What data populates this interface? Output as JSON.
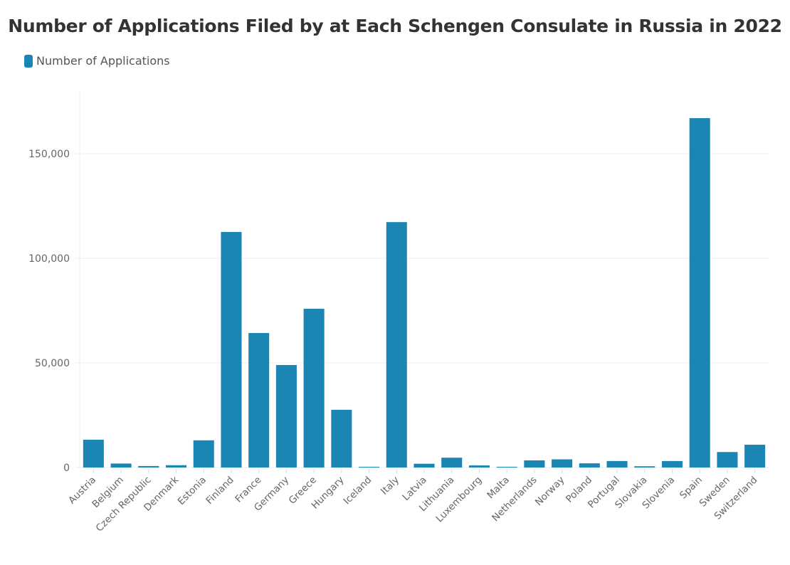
{
  "chart_data": {
    "type": "bar",
    "title": "Number of Applications Filed by at Each Schengen Consulate in Russia in 2022",
    "xlabel": "",
    "ylabel": "",
    "legend": {
      "position": "top-left",
      "entries": [
        "Number of Applications"
      ]
    },
    "ylim": [
      0,
      180000
    ],
    "yticks": [
      0,
      50000,
      100000,
      150000
    ],
    "ytick_labels": [
      "0",
      "50,000",
      "100,000",
      "150,000"
    ],
    "grid": true,
    "categories": [
      "Austria",
      "Belgium",
      "Czech Republic",
      "Denmark",
      "Estonia",
      "Finland",
      "France",
      "Germany",
      "Greece",
      "Hungary",
      "Iceland",
      "Italy",
      "Latvia",
      "Lithuania",
      "Luxembourg",
      "Malta",
      "Netherlands",
      "Norway",
      "Poland",
      "Portugal",
      "Slovakia",
      "Slovenia",
      "Spain",
      "Sweden",
      "Switzerland"
    ],
    "series": [
      {
        "name": "Number of Applications",
        "color": "#1b85b4",
        "values": [
          13300,
          1900,
          700,
          1100,
          13000,
          112600,
          64300,
          49000,
          75900,
          27600,
          300,
          117300,
          1800,
          4700,
          1000,
          300,
          3400,
          3900,
          2000,
          3100,
          600,
          3100,
          167000,
          7400,
          10900
        ]
      }
    ]
  },
  "colors": {
    "bar": "#1b85b4",
    "grid": "#eeeeee",
    "title": "#333333",
    "text": "#666666"
  }
}
